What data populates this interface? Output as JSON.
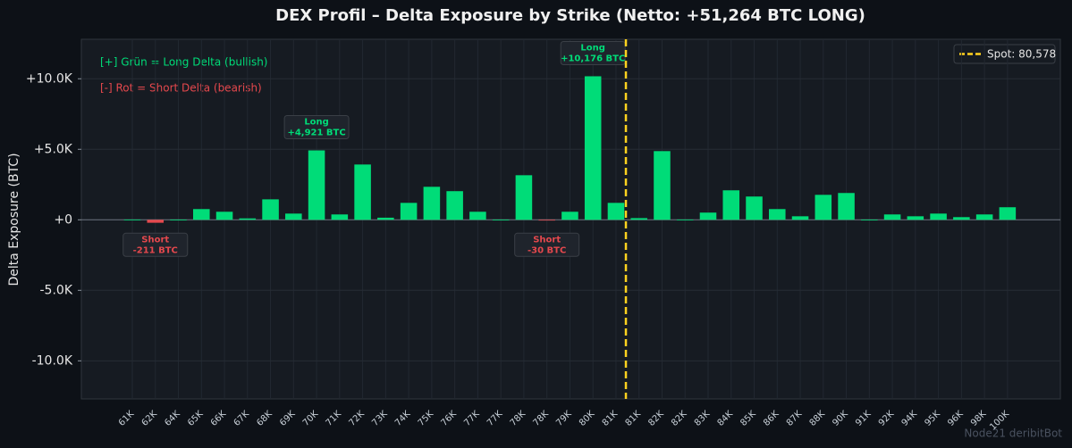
{
  "chart_data": {
    "type": "bar",
    "title": "DEX Profil – Delta Exposure by Strike (Netto: +51,264 BTC LONG)",
    "y_label": "Delta Exposure (BTC)",
    "categories": [
      "61K",
      "62K",
      "64K",
      "65K",
      "66K",
      "67K",
      "68K",
      "69K",
      "70K",
      "71K",
      "72K",
      "73K",
      "74K",
      "75K",
      "76K",
      "77K",
      "77K",
      "78K",
      "78K",
      "79K",
      "80K",
      "81K",
      "81K",
      "82K",
      "82K",
      "83K",
      "84K",
      "85K",
      "86K",
      "87K",
      "88K",
      "90K",
      "91K",
      "92K",
      "94K",
      "95K",
      "96K",
      "98K",
      "100K"
    ],
    "values": [
      20,
      -211,
      10,
      760,
      570,
      100,
      1450,
      440,
      4921,
      380,
      3920,
      150,
      1200,
      2340,
      2030,
      570,
      10,
      3160,
      -30,
      570,
      10176,
      1200,
      120,
      4870,
      20,
      510,
      2090,
      1650,
      760,
      250,
      1770,
      1900,
      10,
      380,
      250,
      440,
      190,
      380,
      890
    ],
    "value_labels": [
      null,
      "-211 BTC",
      null,
      null,
      null,
      null,
      null,
      null,
      "+4,921 BTC",
      null,
      null,
      null,
      null,
      null,
      null,
      null,
      null,
      null,
      "-30 BTC",
      null,
      "+10,176 BTC",
      null,
      null,
      null,
      null,
      null,
      null,
      null,
      null,
      null,
      null,
      null,
      null,
      null,
      null,
      null,
      null,
      null,
      null
    ],
    "value_label_tags": [
      null,
      "Short",
      null,
      null,
      null,
      null,
      null,
      null,
      "Long",
      null,
      null,
      null,
      null,
      null,
      null,
      null,
      null,
      null,
      "Short",
      null,
      "Long",
      null,
      null,
      null,
      null,
      null,
      null,
      null,
      null,
      null,
      null,
      null,
      null,
      null,
      null,
      null,
      null,
      null,
      null
    ],
    "color": "#00dc78",
    "negative_color": "#e5484d",
    "ylim": [
      -12700,
      12800
    ],
    "yticks": [
      {
        "value": -10000,
        "label": "-10.0K"
      },
      {
        "value": -5000,
        "label": "-5.0K"
      },
      {
        "value": 0,
        "label": "+0"
      },
      {
        "value": 5000,
        "label": "+5.0K"
      },
      {
        "value": 10000,
        "label": "+10.0K"
      }
    ],
    "grid": true,
    "spot": {
      "value": 80578,
      "label": "Spot: 80,578",
      "color": "#ffd21f"
    },
    "notes": [
      "[+] Grün = Long Delta (bullish)",
      "[-] Rot = Short Delta (bearish)"
    ],
    "watermark": "Node21 deribitBot"
  }
}
